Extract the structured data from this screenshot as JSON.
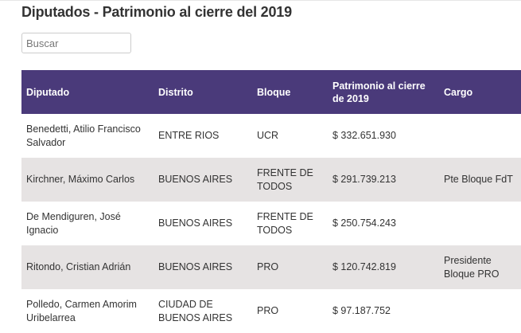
{
  "page": {
    "title": "Diputados - Patrimonio al cierre del 2019"
  },
  "search": {
    "placeholder": "Buscar",
    "value": ""
  },
  "table": {
    "headers": {
      "diputado": "Diputado",
      "distrito": "Distrito",
      "bloque": "Bloque",
      "patrimonio": "Patrimonio al cierre de 2019",
      "cargo": "Cargo"
    },
    "rows": [
      {
        "diputado": "Benedetti, Atilio Francisco Salvador",
        "distrito": "ENTRE RIOS",
        "bloque": "UCR",
        "patrimonio": "$ 332.651.930",
        "cargo": ""
      },
      {
        "diputado": "Kirchner, Máximo Carlos",
        "distrito": "BUENOS AIRES",
        "bloque": "FRENTE DE TODOS",
        "patrimonio": "$ 291.739.213",
        "cargo": "Pte Bloque FdT"
      },
      {
        "diputado": "De Mendiguren, José Ignacio",
        "distrito": "BUENOS AIRES",
        "bloque": "FRENTE DE TODOS",
        "patrimonio": "$ 250.754.243",
        "cargo": ""
      },
      {
        "diputado": "Ritondo, Cristian Adrián",
        "distrito": "BUENOS AIRES",
        "bloque": "PRO",
        "patrimonio": "$ 120.742.819",
        "cargo": "Presidente Bloque PRO"
      },
      {
        "diputado": "Polledo, Carmen Amorim Uribelarrea",
        "distrito": "CIUDAD DE BUENOS AIRES",
        "bloque": "PRO",
        "patrimonio": "$ 97.187.752",
        "cargo": ""
      }
    ]
  },
  "colors": {
    "header_bg": "#4a3a7a",
    "stripe_bg": "#e6e3e3"
  }
}
